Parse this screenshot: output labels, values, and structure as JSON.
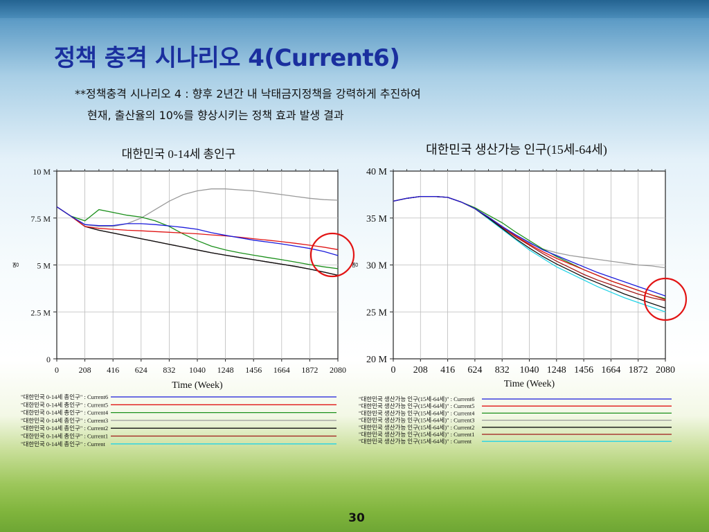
{
  "slide": {
    "title": "정책 충격 시나리오 4(Current6)",
    "subtitle_line1": "**정책충격 시나리오 4 : 향후 2년간 내 낙태금지정책을 강력하게 추진하여",
    "subtitle_line2": "현재, 출산율의 10%를 향상시키는 정책 효과 발생 결과",
    "page_number": "30"
  },
  "chart_data": [
    {
      "type": "line",
      "title": "대한민국 0-14세 총인구",
      "xlabel": "Time (Week)",
      "ylabel": "",
      "y_axis_mark": "명",
      "x_ticks": [
        "0",
        "208",
        "416",
        "624",
        "832",
        "1040",
        "1248",
        "1456",
        "1664",
        "1872",
        "2080"
      ],
      "y_ticks": [
        "0",
        "2.5 M",
        "5 M",
        "7.5 M",
        "10 M"
      ],
      "xlim": [
        0,
        2080
      ],
      "ylim": [
        0,
        10000000
      ],
      "grid": true,
      "x": [
        0,
        104,
        208,
        312,
        416,
        520,
        624,
        728,
        832,
        936,
        1040,
        1144,
        1248,
        1352,
        1456,
        1560,
        1664,
        1768,
        1872,
        1976,
        2080
      ],
      "series": [
        {
          "name": "\"대한민국 0-14세 총인구\" : Current6",
          "color": "#1a1adb",
          "values": [
            8.1,
            7.6,
            7.15,
            7.1,
            7.1,
            7.2,
            7.2,
            7.15,
            7.08,
            7.0,
            6.9,
            6.72,
            6.58,
            6.45,
            6.32,
            6.22,
            6.12,
            6.0,
            5.88,
            5.72,
            5.5
          ]
        },
        {
          "name": "\"대한민국 0-14세 총인구\" : Current5",
          "color": "#e01414",
          "values": [
            8.1,
            7.6,
            7.05,
            6.95,
            6.9,
            6.85,
            6.82,
            6.78,
            6.74,
            6.7,
            6.66,
            6.6,
            6.55,
            6.48,
            6.4,
            6.32,
            6.24,
            6.15,
            6.05,
            5.95,
            5.82
          ]
        },
        {
          "name": "\"대한민국 0-14세 총인구\" : Current4",
          "color": "#1a8f1a",
          "values": [
            8.1,
            7.6,
            7.35,
            7.95,
            7.8,
            7.65,
            7.55,
            7.35,
            7.05,
            6.65,
            6.3,
            6.0,
            5.8,
            5.65,
            5.52,
            5.4,
            5.28,
            5.15,
            5.02,
            4.9,
            4.8
          ]
        },
        {
          "name": "\"대한민국 0-14세 총인구\" : Current3",
          "color": "#9a9a9a",
          "values": [
            8.1,
            7.6,
            7.15,
            7.05,
            7.05,
            7.2,
            7.5,
            7.95,
            8.4,
            8.75,
            8.95,
            9.05,
            9.05,
            9.0,
            8.95,
            8.85,
            8.75,
            8.65,
            8.55,
            8.48,
            8.45
          ]
        },
        {
          "name": "\"대한민국 0-14세 총인구\" : Current2",
          "color": "#111111",
          "values": [
            8.1,
            7.6,
            7.05,
            6.85,
            6.7,
            6.55,
            6.4,
            6.25,
            6.1,
            5.95,
            5.8,
            5.65,
            5.52,
            5.4,
            5.28,
            5.16,
            5.04,
            4.92,
            4.78,
            4.62,
            4.45
          ]
        },
        {
          "name": "\"대한민국 0-14세 총인구\" : Current1",
          "color": "#a01818",
          "values": [
            8.1,
            7.6,
            7.05,
            6.85,
            6.7,
            6.55,
            6.4,
            6.25,
            6.1,
            5.95,
            5.8,
            5.65,
            5.52,
            5.4,
            5.28,
            5.16,
            5.04,
            4.92,
            4.78,
            4.62,
            4.45
          ]
        },
        {
          "name": "\"대한민국 0-14세 총인구\" : Current",
          "color": "#22d3e6",
          "values": [
            8.1,
            7.6,
            7.05,
            6.85,
            6.7,
            6.55,
            6.4,
            6.25,
            6.1,
            5.95,
            5.8,
            5.65,
            5.52,
            5.4,
            5.28,
            5.16,
            5.04,
            4.92,
            4.78,
            4.62,
            4.45
          ]
        }
      ]
    },
    {
      "type": "line",
      "title": "대한민국 생산가능 인구(15세-64세)",
      "xlabel": "Time (Week)",
      "ylabel": "",
      "y_axis_mark": "명",
      "x_ticks": [
        "0",
        "208",
        "416",
        "624",
        "832",
        "1040",
        "1248",
        "1456",
        "1664",
        "1872",
        "2080"
      ],
      "y_ticks": [
        "20 M",
        "25 M",
        "30 M",
        "35 M",
        "40 M"
      ],
      "xlim": [
        0,
        2080
      ],
      "ylim": [
        20000000,
        40000000
      ],
      "grid": true,
      "x": [
        0,
        104,
        208,
        312,
        416,
        520,
        624,
        728,
        832,
        936,
        1040,
        1144,
        1248,
        1352,
        1456,
        1560,
        1664,
        1768,
        1872,
        1976,
        2080
      ],
      "series": [
        {
          "name": "\"대한민국 생산가능 인구(15세-64세)\" : Current6",
          "color": "#1a1adb",
          "values": [
            36.8,
            37.1,
            37.3,
            37.3,
            37.2,
            36.7,
            36.0,
            35.1,
            34.1,
            33.2,
            32.4,
            31.6,
            31.0,
            30.4,
            29.8,
            29.2,
            28.7,
            28.2,
            27.7,
            27.2,
            26.7
          ]
        },
        {
          "name": "\"대한민국 생산가능 인구(15세-64세)\" : Current5",
          "color": "#e01414",
          "values": [
            36.8,
            37.1,
            37.3,
            37.3,
            37.2,
            36.7,
            36.0,
            35.1,
            34.1,
            33.1,
            32.2,
            31.4,
            30.7,
            30.1,
            29.5,
            28.9,
            28.3,
            27.8,
            27.3,
            26.8,
            26.3
          ]
        },
        {
          "name": "\"대한민국 생산가능 인구(15세-64세)\" : Current4",
          "color": "#1a8f1a",
          "values": [
            36.8,
            37.1,
            37.3,
            37.3,
            37.2,
            36.7,
            36.1,
            35.3,
            34.5,
            33.5,
            32.6,
            31.7,
            30.9,
            30.2,
            29.5,
            28.9,
            28.3,
            27.8,
            27.3,
            26.8,
            26.4
          ]
        },
        {
          "name": "\"대한민국 생산가능 인구(15세-64세)\" : Current3",
          "color": "#9a9a9a",
          "values": [
            36.8,
            37.1,
            37.3,
            37.3,
            37.2,
            36.7,
            36.0,
            35.1,
            34.1,
            33.1,
            32.3,
            31.7,
            31.3,
            31.0,
            30.8,
            30.6,
            30.4,
            30.2,
            30.0,
            29.9,
            29.7
          ]
        },
        {
          "name": "\"대한민국 생산가능 인구(15세-64세)\" : Current2",
          "color": "#111111",
          "values": [
            36.8,
            37.1,
            37.3,
            37.3,
            37.2,
            36.7,
            36.0,
            35.0,
            33.9,
            32.8,
            31.8,
            30.9,
            30.1,
            29.4,
            28.7,
            28.1,
            27.5,
            26.9,
            26.4,
            25.9,
            25.4
          ]
        },
        {
          "name": "\"대한민국 생산가능 인구(15세-64세)\" : Current1",
          "color": "#a01818",
          "values": [
            36.8,
            37.1,
            37.3,
            37.3,
            37.2,
            36.7,
            36.0,
            35.0,
            34.0,
            33.0,
            32.1,
            31.2,
            30.4,
            29.7,
            29.0,
            28.4,
            27.9,
            27.4,
            26.9,
            26.5,
            26.2
          ]
        },
        {
          "name": "\"대한민국 생산가능 인구(15세-64세)\" : Current",
          "color": "#22d3e6",
          "values": [
            36.8,
            37.1,
            37.3,
            37.3,
            37.2,
            36.7,
            36.0,
            34.9,
            33.8,
            32.7,
            31.6,
            30.7,
            29.8,
            29.1,
            28.4,
            27.7,
            27.1,
            26.5,
            26.0,
            25.5,
            25.0
          ]
        }
      ]
    }
  ]
}
